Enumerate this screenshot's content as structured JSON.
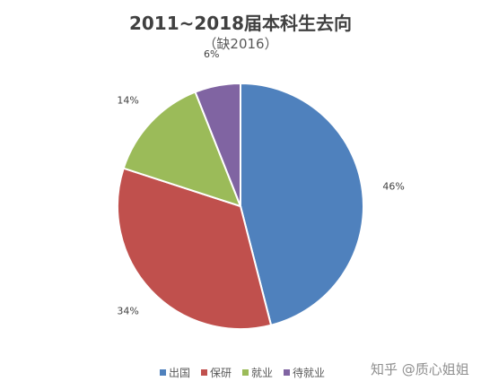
{
  "chart_data": {
    "type": "pie",
    "title": "2011~2018届本科生去向",
    "subtitle": "（缺2016）",
    "categories": [
      "出国",
      "保研",
      "就业",
      "待就业"
    ],
    "values": [
      46,
      34,
      14,
      6
    ],
    "data_labels": [
      "46%",
      "34%",
      "14%",
      "6%"
    ],
    "colors": [
      "#4F81BD",
      "#C0504D",
      "#9BBB59",
      "#8064A2"
    ],
    "legend_position": "bottom"
  },
  "legend": {
    "items": [
      "出国",
      "保研",
      "就业",
      "待就业"
    ]
  },
  "watermark": {
    "text": "知乎 @质心姐姐"
  }
}
